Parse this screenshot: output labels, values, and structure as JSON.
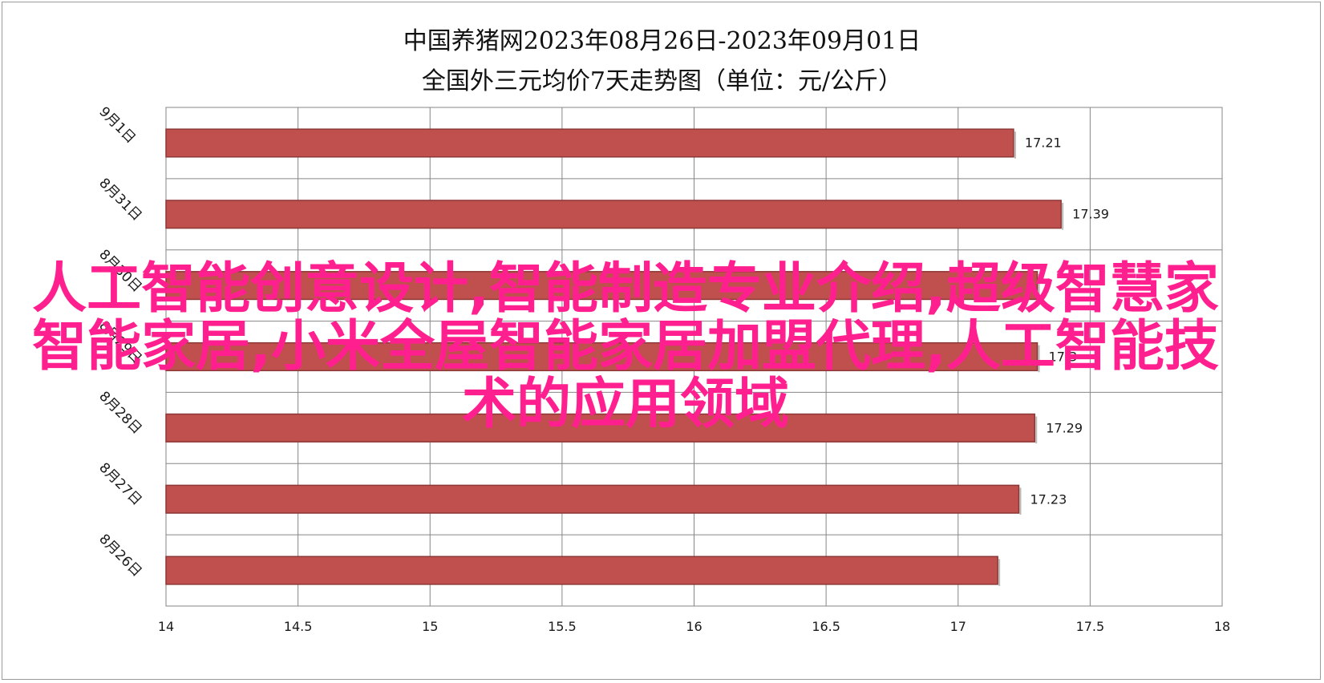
{
  "chart_data": {
    "type": "bar",
    "orientation": "horizontal",
    "title": "中国养猪网2023年08月26日-2023年09月01日",
    "subtitle": "全国外三元均价7天走势图（单位：元/公斤）",
    "categories": [
      "9月1日",
      "8月31日",
      "8月30日",
      "8月29日",
      "8月28日",
      "8月27日",
      "8月26日"
    ],
    "values": [
      17.21,
      17.39,
      17.3,
      17.3,
      17.29,
      17.23,
      17.15
    ],
    "data_labels": [
      "17.21",
      "17.39",
      "",
      "17.3",
      "17.29",
      "17.23",
      ""
    ],
    "x_ticks": [
      "14",
      "14.5",
      "15",
      "15.5",
      "16",
      "16.5",
      "17",
      "17.5",
      "18"
    ],
    "xlim": [
      14,
      18
    ],
    "grid": true,
    "bar_color": "#c0504d",
    "bar_edge_color": "#8c3836"
  },
  "overlay": {
    "text": "人工智能创意设计,智能制造专业介绍,超级智慧家智能家居,小米全屋智能家居加盟代理,人工智能技术的应用领域",
    "color": "#ff1f8e"
  }
}
